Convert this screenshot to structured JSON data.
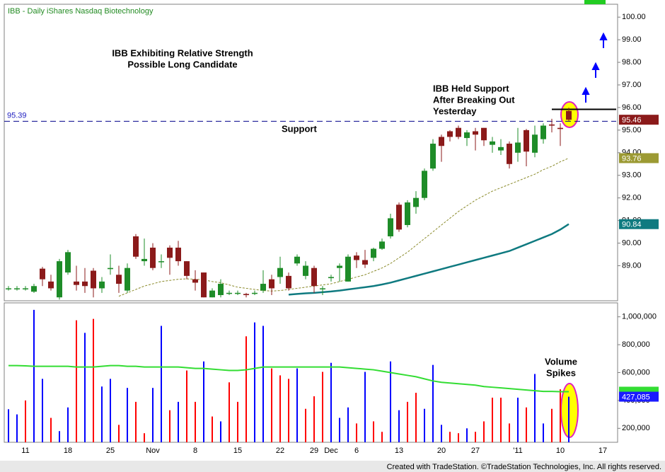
{
  "header": "IBB - Daily  iShares Nasdaq Biotechnology",
  "footer": "Created with TradeStation. ©TradeStation Technologies, Inc. All rights reserved.",
  "chart_data": [
    {
      "type": "candlestick",
      "categories": [
        null,
        null,
        "11",
        null,
        null,
        null,
        null,
        "18",
        null,
        null,
        null,
        null,
        "25",
        null,
        null,
        null,
        null,
        "Nov",
        null,
        null,
        null,
        null,
        "8",
        null,
        null,
        null,
        null,
        "15",
        null,
        null,
        null,
        null,
        "22",
        null,
        null,
        null,
        "29",
        null,
        "Dec",
        null,
        null,
        "6",
        null,
        null,
        null,
        null,
        "13",
        null,
        null,
        null,
        null,
        "20",
        null,
        null,
        null,
        "27",
        null,
        null,
        null,
        null,
        "'11",
        null,
        null,
        null,
        null,
        "10",
        null,
        null,
        null,
        null,
        "17",
        null
      ],
      "ohlc": [
        [
          88.0,
          88.1,
          87.9,
          88.0
        ],
        [
          88.0,
          88.1,
          87.9,
          88.0
        ],
        [
          88.0,
          88.1,
          87.9,
          88.0
        ],
        [
          87.85,
          88.2,
          87.8,
          88.1
        ],
        [
          88.87,
          88.95,
          88.1,
          88.4
        ],
        [
          88.3,
          88.6,
          87.9,
          88.0
        ],
        [
          87.6,
          89.3,
          87.5,
          89.2
        ],
        [
          88.7,
          89.7,
          88.6,
          89.6
        ],
        [
          88.3,
          89.0,
          87.9,
          88.15
        ],
        [
          88.3,
          88.9,
          87.8,
          88.1
        ],
        [
          88.78,
          88.9,
          87.6,
          88.0
        ],
        [
          88.0,
          88.5,
          87.8,
          88.3
        ],
        [
          88.85,
          89.5,
          88.6,
          88.9
        ],
        [
          88.6,
          89.0,
          87.8,
          88.2
        ],
        [
          87.9,
          89.1,
          87.8,
          88.9
        ],
        [
          90.3,
          90.4,
          89.3,
          89.4
        ],
        [
          89.2,
          90.2,
          89.0,
          89.3
        ],
        [
          89.8,
          90.0,
          88.8,
          88.9
        ],
        [
          89.2,
          89.5,
          88.9,
          89.2
        ],
        [
          89.8,
          89.9,
          88.6,
          89.35
        ],
        [
          89.8,
          90.1,
          89.0,
          89.2
        ],
        [
          89.2,
          89.2,
          88.4,
          88.55
        ],
        [
          88.4,
          88.8,
          87.9,
          88.25
        ],
        [
          88.7,
          88.7,
          87.6,
          87.6
        ],
        [
          87.6,
          88.0,
          87.6,
          87.9
        ],
        [
          87.7,
          88.4,
          87.6,
          88.2
        ],
        [
          87.8,
          87.9,
          87.7,
          87.8
        ],
        [
          87.8,
          87.9,
          87.7,
          87.8
        ],
        [
          87.75,
          87.8,
          87.6,
          87.7
        ],
        [
          87.8,
          87.9,
          87.7,
          87.8
        ],
        [
          87.9,
          88.8,
          87.8,
          88.2
        ],
        [
          88.4,
          88.6,
          87.7,
          88.0
        ],
        [
          88.5,
          89.4,
          88.2,
          88.9
        ],
        [
          88.55,
          88.7,
          87.9,
          88.0
        ],
        [
          89.1,
          89.5,
          89.0,
          89.4
        ],
        [
          88.55,
          89.2,
          88.4,
          89.0
        ],
        [
          88.9,
          89.0,
          87.8,
          88.1
        ],
        [
          88.0,
          88.1,
          87.7,
          88.0
        ],
        [
          88.45,
          88.6,
          88.3,
          88.5
        ],
        [
          88.9,
          89.1,
          88.3,
          89.0
        ],
        [
          88.3,
          89.5,
          88.3,
          89.4
        ],
        [
          89.45,
          89.6,
          88.9,
          89.25
        ],
        [
          89.25,
          89.7,
          88.9,
          89.05
        ],
        [
          89.35,
          89.8,
          89.2,
          89.75
        ],
        [
          89.75,
          90.2,
          89.7,
          90.07
        ],
        [
          90.3,
          91.3,
          90.2,
          91.1
        ],
        [
          91.7,
          91.8,
          90.5,
          90.6
        ],
        [
          90.8,
          91.9,
          90.7,
          91.8
        ],
        [
          91.6,
          92.3,
          91.3,
          92.0
        ],
        [
          92.0,
          93.3,
          91.9,
          93.2
        ],
        [
          93.3,
          94.6,
          93.2,
          94.4
        ],
        [
          94.7,
          94.8,
          93.6,
          94.3
        ],
        [
          94.95,
          95.0,
          94.5,
          94.7
        ],
        [
          95.1,
          95.2,
          94.6,
          94.7
        ],
        [
          94.65,
          95.0,
          94.3,
          94.9
        ],
        [
          94.95,
          95.1,
          94.1,
          94.8
        ],
        [
          95.1,
          95.1,
          94.3,
          94.55
        ],
        [
          94.35,
          94.7,
          94.0,
          94.5
        ],
        [
          94.1,
          94.6,
          93.9,
          94.25
        ],
        [
          94.4,
          94.5,
          93.3,
          93.5
        ],
        [
          94.0,
          95.1,
          93.6,
          94.45
        ],
        [
          95.0,
          95.05,
          93.4,
          94.05
        ],
        [
          94.0,
          95.2,
          93.8,
          94.8
        ],
        [
          94.6,
          95.3,
          94.4,
          95.2
        ],
        [
          95.25,
          95.5,
          94.9,
          95.2
        ],
        [
          95.1,
          95.3,
          94.3,
          95.05
        ],
        [
          95.85,
          96.0,
          95.4,
          95.46
        ],
        null,
        null,
        null,
        null,
        null
      ],
      "up_color": "#1e8c28",
      "down_color": "#8b1a1a",
      "series": [
        {
          "color": "#8a8a2a",
          "style": "dashed",
          "tag_color": "#9c9a33",
          "values": [
            null,
            null,
            null,
            null,
            null,
            null,
            null,
            null,
            null,
            null,
            null,
            null,
            null,
            87.65,
            87.8,
            87.95,
            88.1,
            88.2,
            88.3,
            88.35,
            88.4,
            88.42,
            88.4,
            88.38,
            88.3,
            88.25,
            88.15,
            88.05,
            88.0,
            87.95,
            87.9,
            87.88,
            87.9,
            87.95,
            88.0,
            88.05,
            88.1,
            88.15,
            88.2,
            88.3,
            88.4,
            88.5,
            88.6,
            88.75,
            88.9,
            89.1,
            89.35,
            89.6,
            89.9,
            90.2,
            90.5,
            90.8,
            91.1,
            91.4,
            91.65,
            91.9,
            92.1,
            92.3,
            92.45,
            92.6,
            92.75,
            92.9,
            93.05,
            93.25,
            93.4,
            93.6,
            93.76,
            null,
            null,
            null,
            null,
            null
          ]
        },
        {
          "color": "#0f7a80",
          "style": "solid",
          "tag_color": "#0f7a80",
          "values": [
            null,
            null,
            null,
            null,
            null,
            null,
            null,
            null,
            null,
            null,
            null,
            null,
            null,
            null,
            null,
            null,
            null,
            null,
            null,
            null,
            null,
            null,
            null,
            null,
            null,
            null,
            null,
            null,
            null,
            null,
            null,
            null,
            null,
            87.72,
            87.75,
            87.78,
            87.8,
            87.83,
            87.86,
            87.9,
            87.95,
            88.0,
            88.05,
            88.1,
            88.17,
            88.25,
            88.35,
            88.45,
            88.55,
            88.65,
            88.75,
            88.85,
            88.95,
            89.05,
            89.15,
            89.25,
            89.35,
            89.45,
            89.55,
            89.65,
            89.8,
            89.95,
            90.1,
            90.25,
            90.4,
            90.6,
            90.84,
            null,
            null,
            null,
            null,
            null
          ]
        }
      ],
      "lines": [
        {
          "value": 95.39,
          "style": "dashed",
          "color": "#00008b"
        },
        {
          "value": 95.92,
          "style": "solid",
          "color": "#000000"
        }
      ],
      "annotations": [
        {
          "text": "IBB Exhibiting Relative Strength"
        },
        {
          "text": "Possible Long Candidate"
        },
        {
          "text": "IBB Held Support"
        },
        {
          "text": "After Breaking Out"
        },
        {
          "text": "Yesterday"
        },
        {
          "text": "Support"
        }
      ],
      "ylim": [
        87.45,
        100.57
      ],
      "yticks": [
        {
          "value": 89,
          "label": "89.00"
        },
        {
          "value": 90,
          "label": "90.00"
        },
        {
          "value": 91,
          "label": "91.00"
        },
        {
          "value": 92,
          "label": "92.00"
        },
        {
          "value": 93,
          "label": "93.00"
        },
        {
          "value": 94,
          "label": "94.00"
        },
        {
          "value": 95,
          "label": "95.00"
        },
        {
          "value": 96,
          "label": "96.00"
        },
        {
          "value": 97,
          "label": "97.00"
        },
        {
          "value": 98,
          "label": "98.00"
        },
        {
          "value": 99,
          "label": "99.00"
        },
        {
          "value": 100,
          "label": "100.00"
        }
      ]
    },
    {
      "type": "bar",
      "values": [
        337000,
        300000,
        400000,
        1050000,
        555000,
        275000,
        180000,
        350000,
        975000,
        885000,
        985000,
        500000,
        555000,
        225000,
        490000,
        390000,
        165000,
        490000,
        935000,
        330000,
        390000,
        615000,
        390000,
        680000,
        285000,
        250000,
        530000,
        390000,
        860000,
        960000,
        935000,
        630000,
        580000,
        555000,
        630000,
        340000,
        430000,
        605000,
        670000,
        275000,
        350000,
        235000,
        605000,
        250000,
        175000,
        680000,
        330000,
        390000,
        455000,
        340000,
        655000,
        225000,
        175000,
        165000,
        200000,
        175000,
        250000,
        420000,
        420000,
        235000,
        420000,
        350000,
        590000,
        235000,
        340000,
        480000,
        427085,
        null,
        null,
        null,
        null,
        null
      ],
      "colors": [
        "#0000ff",
        "#0000ff",
        "#ff0000",
        "#0000ff",
        "#0000ff",
        "#ff0000",
        "#0000ff",
        "#0000ff",
        "#ff0000",
        "#0000ff",
        "#ff0000",
        "#0000ff",
        "#0000ff",
        "#ff0000",
        "#0000ff",
        "#ff0000",
        "#ff0000",
        "#0000ff",
        "#0000ff",
        "#ff0000",
        "#0000ff",
        "#ff0000",
        "#ff0000",
        "#0000ff",
        "#ff0000",
        "#0000ff",
        "#ff0000",
        "#ff0000",
        "#ff0000",
        "#0000ff",
        "#0000ff",
        "#ff0000",
        "#ff0000",
        "#ff0000",
        "#0000ff",
        "#ff0000",
        "#ff0000",
        "#ff0000",
        "#0000ff",
        "#0000ff",
        "#0000ff",
        "#ff0000",
        "#0000ff",
        "#ff0000",
        "#ff0000",
        "#0000ff",
        "#0000ff",
        "#ff0000",
        "#ff0000",
        "#0000ff",
        "#0000ff",
        "#0000ff",
        "#ff0000",
        "#ff0000",
        "#0000ff",
        "#ff0000",
        "#ff0000",
        "#ff0000",
        "#ff0000",
        "#ff0000",
        "#0000ff",
        "#ff0000",
        "#0000ff",
        "#0000ff",
        "#ff0000",
        "#ff0000",
        "#0000ff",
        null,
        null,
        null,
        null,
        null
      ],
      "value_labels": [
        null,
        null,
        null,
        null,
        null,
        null,
        null,
        null,
        null,
        null,
        null,
        null,
        null,
        null,
        null,
        null,
        null,
        null,
        null,
        null,
        null,
        null,
        null,
        null,
        null,
        null,
        null,
        null,
        null,
        null,
        null,
        null,
        null,
        null,
        null,
        null,
        null,
        null,
        null,
        null,
        null,
        null,
        null,
        null,
        null,
        null,
        null,
        null,
        null,
        null,
        null,
        null,
        null,
        null,
        null,
        null,
        null,
        null,
        null,
        null,
        null,
        null,
        null,
        null,
        null,
        null,
        "427,085",
        null,
        null,
        null,
        null,
        null
      ],
      "series": [
        {
          "color": "#33dd33",
          "values": [
            650000,
            650000,
            648000,
            645000,
            645000,
            645000,
            645000,
            645000,
            640000,
            640000,
            640000,
            645000,
            650000,
            650000,
            645000,
            645000,
            640000,
            640000,
            640000,
            640000,
            640000,
            635000,
            630000,
            630000,
            625000,
            620000,
            615000,
            615000,
            620000,
            630000,
            640000,
            640000,
            640000,
            640000,
            640000,
            640000,
            640000,
            640000,
            640000,
            640000,
            635000,
            630000,
            625000,
            620000,
            610000,
            600000,
            590000,
            580000,
            570000,
            555000,
            540000,
            530000,
            525000,
            520000,
            515000,
            510000,
            500000,
            495000,
            490000,
            485000,
            480000,
            475000,
            470000,
            465000,
            465000,
            463000,
            463000,
            null,
            null,
            null,
            null,
            null
          ]
        }
      ],
      "annotations": [
        {
          "text": "Volume"
        },
        {
          "text": "Spikes"
        }
      ],
      "ylim": [
        100000,
        1100000
      ],
      "yticks": [
        {
          "value": 200000,
          "label": "200,000"
        },
        {
          "value": 400000,
          "label": "400,000"
        },
        {
          "value": 600000,
          "label": "600,000"
        },
        {
          "value": 800000,
          "label": "800,000"
        },
        {
          "value": 1000000,
          "label": "1,000,000"
        }
      ]
    }
  ]
}
